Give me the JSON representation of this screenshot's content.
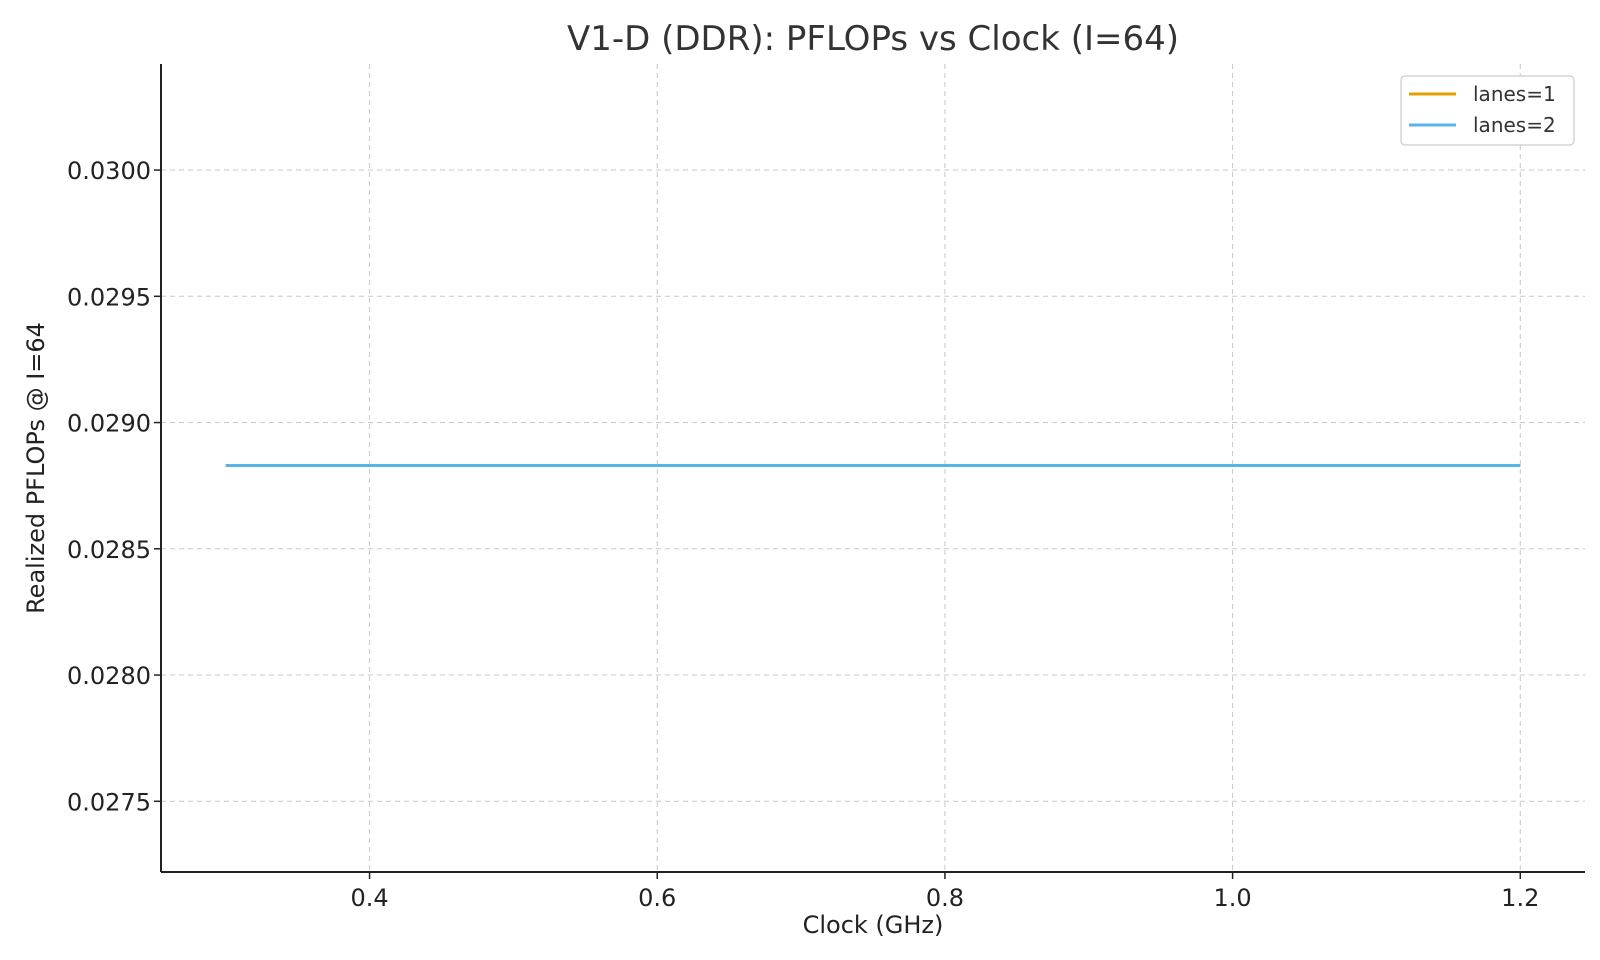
{
  "chart_data": {
    "type": "line",
    "title": "V1-D (DDR): PFLOPs vs Clock (I=64)",
    "xlabel": "Clock (GHz)",
    "ylabel": "Realized PFLOPs @ I=64",
    "xlim": [
      0.255,
      1.245
    ],
    "ylim": [
      0.02722,
      0.03042
    ],
    "xticks": [
      0.4,
      0.6,
      0.8,
      1.0,
      1.2
    ],
    "xtick_labels": [
      "0.4",
      "0.6",
      "0.8",
      "1.0",
      "1.2"
    ],
    "yticks": [
      0.0275,
      0.028,
      0.0285,
      0.029,
      0.0295,
      0.03
    ],
    "ytick_labels": [
      "0.0275",
      "0.0280",
      "0.0285",
      "0.0290",
      "0.0295",
      "0.0300"
    ],
    "grid": true,
    "legend_position": "top-right",
    "series": [
      {
        "name": "lanes=1",
        "color": "#E69F00",
        "x": [
          0.3,
          0.4,
          0.5,
          0.6,
          0.7,
          0.8,
          0.9,
          1.0,
          1.1,
          1.2
        ],
        "y": [
          0.02883,
          0.02883,
          0.02883,
          0.02883,
          0.02883,
          0.02883,
          0.02883,
          0.02883,
          0.02883,
          0.02883
        ]
      },
      {
        "name": "lanes=2",
        "color": "#56B4E9",
        "x": [
          0.3,
          0.4,
          0.5,
          0.6,
          0.7,
          0.8,
          0.9,
          1.0,
          1.1,
          1.2
        ],
        "y": [
          0.02883,
          0.02883,
          0.02883,
          0.02883,
          0.02883,
          0.02883,
          0.02883,
          0.02883,
          0.02883,
          0.02883
        ]
      }
    ]
  }
}
